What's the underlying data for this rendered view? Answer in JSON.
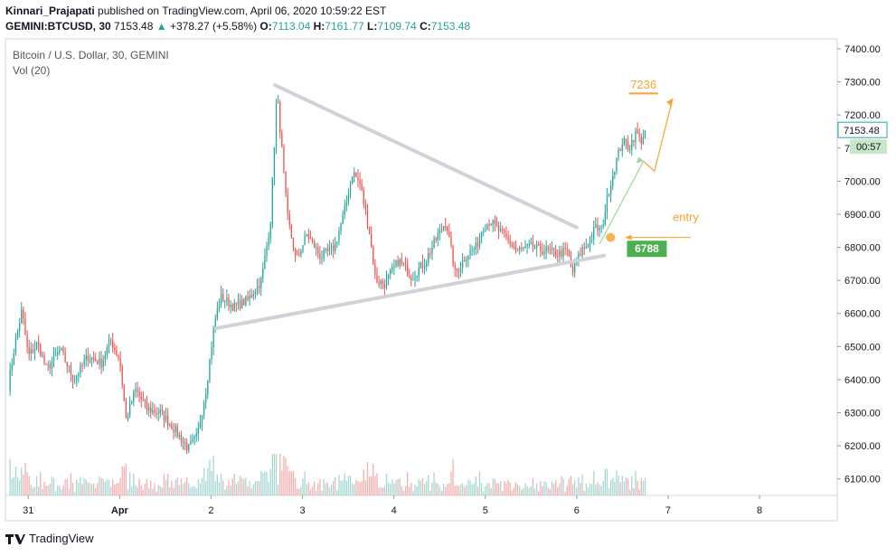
{
  "header": {
    "author": "Kinnari_Prajapati",
    "published_text": "published on TradingView.com, April 06, 2020 10:59:22 EST",
    "symbol": "GEMINI:BTCUSD, 30",
    "last": "7153.48",
    "change": "+378.27 (+5.58%)",
    "o_label": "O:",
    "o_value": "7113.04",
    "h_label": "H:",
    "h_value": "7161.77",
    "l_label": "L:",
    "l_value": "7109.74",
    "c_label": "C:",
    "c_value": "7153.48"
  },
  "legend": {
    "title": "Bitcoin / U.S. Dollar, 30, GEMINI",
    "volume": "Vol (20)"
  },
  "footer": {
    "brand": "TradingView"
  },
  "colors": {
    "up": "#26a69a",
    "down": "#ef5350",
    "trendline": "#d1d1d9",
    "orange": "#f7a531",
    "green_label": "#4caf50",
    "arrow_green": "#9fd6a3"
  },
  "chart_data": {
    "type": "candlestick",
    "y_ticks": [
      "7400.00",
      "7300.00",
      "7200.00",
      "7100.00",
      "7000.00",
      "6900.00",
      "6800.00",
      "6700.00",
      "6600.00",
      "6500.00",
      "6400.00",
      "6300.00",
      "6200.00",
      "6100.00"
    ],
    "ylim": [
      6050,
      7430
    ],
    "x_ticks": [
      "31",
      "Apr",
      "2",
      "3",
      "4",
      "5",
      "6",
      "7",
      "8"
    ],
    "x_tick_values": [
      0.25,
      1.25,
      2.25,
      3.25,
      4.25,
      5.25,
      6.25,
      7.25,
      8.25
    ],
    "xlim": [
      0,
      9.1
    ],
    "last_price_label": "7153.48",
    "countdown_label": "00:57",
    "annotations": {
      "target": "7236",
      "entry_text": "entry",
      "entry_price": "6788"
    },
    "trendlines": [
      {
        "name": "upper",
        "x": [
          2.95,
          6.25
        ],
        "y": [
          7290,
          6860
        ]
      },
      {
        "name": "lower",
        "x": [
          2.3,
          6.55
        ],
        "y": [
          6555,
          6775
        ]
      }
    ],
    "anchors": [
      {
        "x": 0.03,
        "c": 6380
      },
      {
        "x": 0.1,
        "c": 6500
      },
      {
        "x": 0.18,
        "c": 6610
      },
      {
        "x": 0.25,
        "c": 6470
      },
      {
        "x": 0.35,
        "c": 6510
      },
      {
        "x": 0.45,
        "c": 6430
      },
      {
        "x": 0.6,
        "c": 6490
      },
      {
        "x": 0.75,
        "c": 6400
      },
      {
        "x": 0.9,
        "c": 6470
      },
      {
        "x": 1.05,
        "c": 6450
      },
      {
        "x": 1.15,
        "c": 6520
      },
      {
        "x": 1.25,
        "c": 6460
      },
      {
        "x": 1.32,
        "c": 6280
      },
      {
        "x": 1.42,
        "c": 6370
      },
      {
        "x": 1.55,
        "c": 6310
      },
      {
        "x": 1.7,
        "c": 6300
      },
      {
        "x": 1.85,
        "c": 6250
      },
      {
        "x": 2.0,
        "c": 6190
      },
      {
        "x": 2.1,
        "c": 6230
      },
      {
        "x": 2.2,
        "c": 6380
      },
      {
        "x": 2.28,
        "c": 6560
      },
      {
        "x": 2.35,
        "c": 6650
      },
      {
        "x": 2.5,
        "c": 6620
      },
      {
        "x": 2.65,
        "c": 6640
      },
      {
        "x": 2.8,
        "c": 6700
      },
      {
        "x": 2.9,
        "c": 6880
      },
      {
        "x": 2.97,
        "c": 7270
      },
      {
        "x": 3.02,
        "c": 7110
      },
      {
        "x": 3.08,
        "c": 6900
      },
      {
        "x": 3.18,
        "c": 6760
      },
      {
        "x": 3.3,
        "c": 6840
      },
      {
        "x": 3.45,
        "c": 6770
      },
      {
        "x": 3.6,
        "c": 6800
      },
      {
        "x": 3.72,
        "c": 6920
      },
      {
        "x": 3.8,
        "c": 7030
      },
      {
        "x": 3.88,
        "c": 6990
      },
      {
        "x": 3.98,
        "c": 6850
      },
      {
        "x": 4.05,
        "c": 6700
      },
      {
        "x": 4.15,
        "c": 6690
      },
      {
        "x": 4.3,
        "c": 6760
      },
      {
        "x": 4.45,
        "c": 6710
      },
      {
        "x": 4.6,
        "c": 6760
      },
      {
        "x": 4.72,
        "c": 6830
      },
      {
        "x": 4.82,
        "c": 6880
      },
      {
        "x": 4.92,
        "c": 6720
      },
      {
        "x": 5.05,
        "c": 6780
      },
      {
        "x": 5.15,
        "c": 6800
      },
      {
        "x": 5.22,
        "c": 6860
      },
      {
        "x": 5.3,
        "c": 6880
      },
      {
        "x": 5.4,
        "c": 6850
      },
      {
        "x": 5.5,
        "c": 6820
      },
      {
        "x": 5.6,
        "c": 6790
      },
      {
        "x": 5.75,
        "c": 6800
      },
      {
        "x": 5.9,
        "c": 6790
      },
      {
        "x": 6.05,
        "c": 6780
      },
      {
        "x": 6.15,
        "c": 6790
      },
      {
        "x": 6.2,
        "c": 6720
      },
      {
        "x": 6.3,
        "c": 6790
      },
      {
        "x": 6.4,
        "c": 6820
      },
      {
        "x": 6.45,
        "c": 6860
      },
      {
        "x": 6.52,
        "c": 6850
      },
      {
        "x": 6.6,
        "c": 6970
      },
      {
        "x": 6.68,
        "c": 7060
      },
      {
        "x": 6.75,
        "c": 7120
      },
      {
        "x": 6.82,
        "c": 7100
      },
      {
        "x": 6.9,
        "c": 7150
      },
      {
        "x": 6.95,
        "c": 7120
      },
      {
        "x": 7.0,
        "c": 7153.48
      }
    ],
    "volume_max": 160
  }
}
